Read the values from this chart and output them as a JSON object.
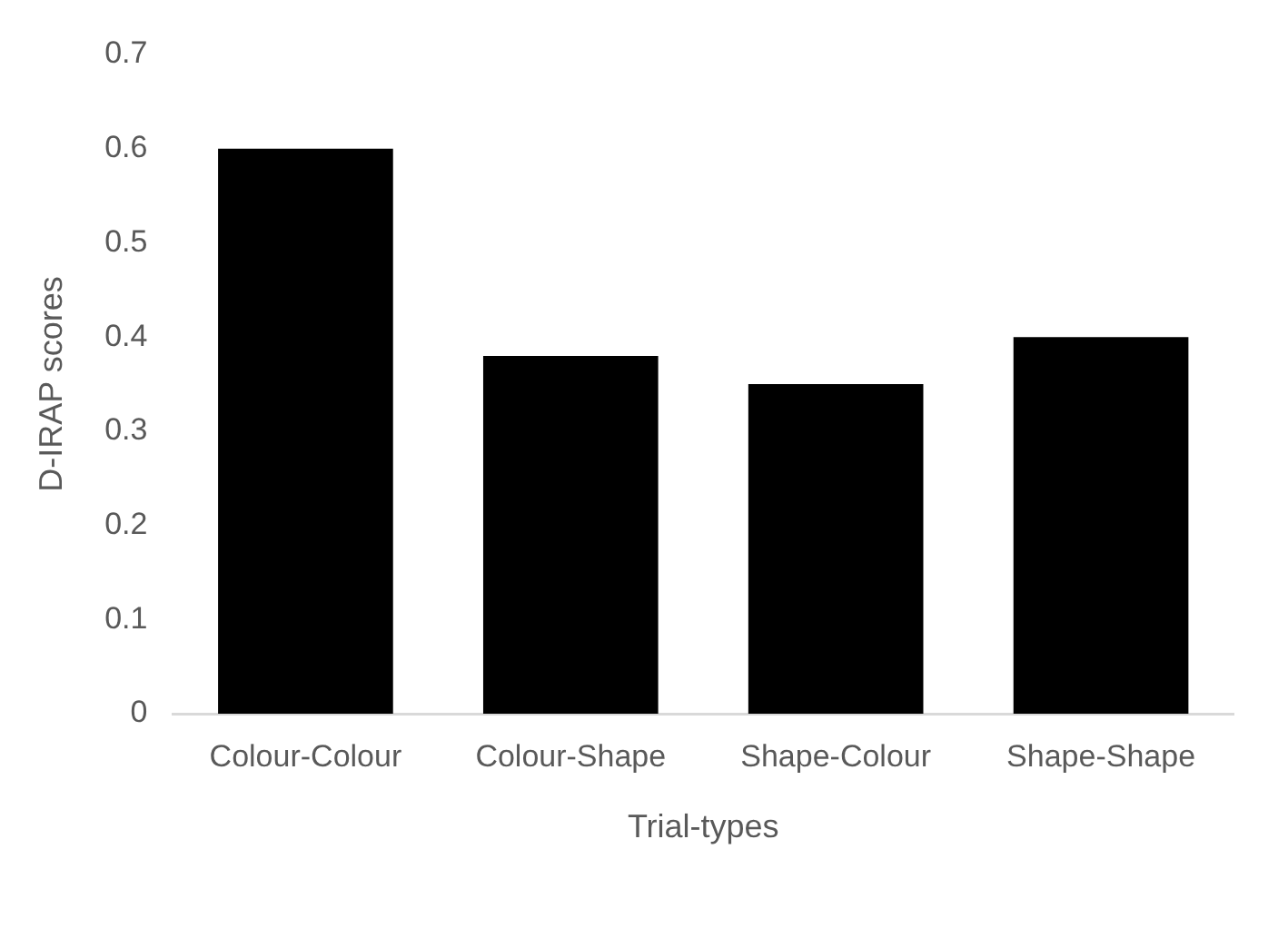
{
  "chart_data": {
    "type": "bar",
    "xlabel": "Trial-types",
    "ylabel": "D-IRAP scores",
    "categories": [
      "Colour-Colour",
      "Colour-Shape",
      "Shape-Colour",
      "Shape-Shape"
    ],
    "values": [
      0.6,
      0.38,
      0.35,
      0.4
    ],
    "color": "#000000",
    "ylim": [
      0,
      0.7
    ],
    "yticks": [
      0,
      0.1,
      0.2,
      0.3,
      0.4,
      0.5,
      0.6,
      0.7
    ],
    "grid": false,
    "legend": false
  }
}
